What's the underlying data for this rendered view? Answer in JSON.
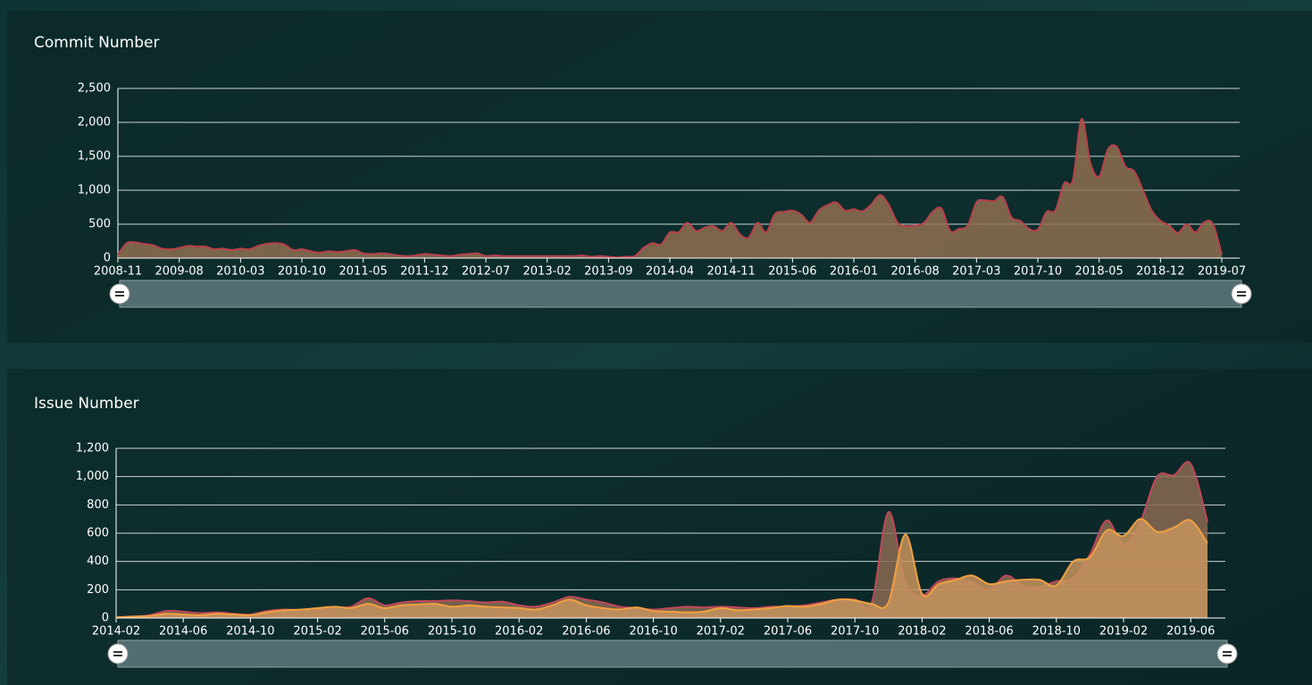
{
  "chart_data": [
    {
      "type": "area",
      "title": "Commit Number",
      "categories": [
        "2008-11",
        null,
        null,
        null,
        null,
        null,
        null,
        "2009-08",
        null,
        null,
        null,
        null,
        null,
        null,
        "2010-03",
        null,
        null,
        null,
        null,
        null,
        null,
        "2010-10",
        null,
        null,
        null,
        null,
        null,
        null,
        "2011-05",
        null,
        null,
        null,
        null,
        null,
        null,
        "2011-12",
        null,
        null,
        null,
        null,
        null,
        null,
        "2012-07",
        null,
        null,
        null,
        null,
        null,
        null,
        "2013-02",
        null,
        null,
        null,
        null,
        null,
        null,
        "2013-09",
        null,
        null,
        null,
        null,
        null,
        null,
        "2014-04",
        null,
        null,
        null,
        null,
        null,
        null,
        "2014-11",
        null,
        null,
        null,
        null,
        null,
        null,
        "2015-06",
        null,
        null,
        null,
        null,
        null,
        null,
        "2016-01",
        null,
        null,
        null,
        null,
        null,
        null,
        "2016-08",
        null,
        null,
        null,
        null,
        null,
        null,
        "2017-03",
        null,
        null,
        null,
        null,
        null,
        null,
        "2017-10",
        null,
        null,
        null,
        null,
        null,
        null,
        "2018-05",
        null,
        null,
        null,
        null,
        null,
        null,
        "2018-12",
        null,
        null,
        null,
        null,
        null,
        null,
        "2019-07"
      ],
      "series": [
        {
          "color": "#b8404a",
          "fill": "#8f7050",
          "values": [
            50,
            220,
            230,
            210,
            190,
            140,
            130,
            150,
            180,
            170,
            170,
            130,
            140,
            120,
            140,
            130,
            180,
            210,
            220,
            200,
            120,
            130,
            100,
            80,
            100,
            90,
            100,
            120,
            70,
            60,
            70,
            60,
            40,
            30,
            40,
            60,
            50,
            40,
            30,
            50,
            60,
            70,
            30,
            40,
            30,
            30,
            30,
            30,
            30,
            30,
            30,
            30,
            30,
            40,
            20,
            30,
            20,
            10,
            20,
            30,
            150,
            220,
            200,
            380,
            380,
            520,
            400,
            450,
            470,
            400,
            520,
            350,
            300,
            520,
            380,
            650,
            680,
            700,
            640,
            520,
            700,
            780,
            820,
            700,
            720,
            690,
            790,
            930,
            780,
            520,
            470,
            480,
            520,
            680,
            730,
            400,
            430,
            480,
            820,
            850,
            840,
            900,
            600,
            550,
            430,
            420,
            680,
            700,
            1100,
            1150,
            2050,
            1400,
            1200,
            1600,
            1640,
            1350,
            1280,
            1000,
            700,
            550,
            480,
            370,
            500,
            380,
            530,
            500,
            50
          ]
        }
      ],
      "ylim": [
        0,
        2500
      ],
      "yticks": [
        0,
        500,
        {
          "value": 1000,
          "label": "1,000"
        },
        {
          "value": 1500,
          "label": "1,500"
        },
        {
          "value": 2000,
          "label": "2,000"
        },
        {
          "value": 2500,
          "label": "2,500"
        }
      ],
      "grid": true
    },
    {
      "type": "area",
      "title": "Issue Number",
      "categories": [
        "2014-02",
        null,
        null,
        null,
        "2014-06",
        null,
        null,
        null,
        "2014-10",
        null,
        null,
        null,
        "2015-02",
        null,
        null,
        null,
        "2015-06",
        null,
        null,
        null,
        "2015-10",
        null,
        null,
        null,
        "2016-02",
        null,
        null,
        null,
        "2016-06",
        null,
        null,
        null,
        "2016-10",
        null,
        null,
        null,
        "2017-02",
        null,
        null,
        null,
        "2017-06",
        null,
        null,
        null,
        "2017-10",
        null,
        null,
        null,
        "2018-02",
        null,
        null,
        null,
        "2018-06",
        null,
        null,
        null,
        "2018-10",
        null,
        null,
        null,
        "2019-02",
        null,
        null,
        null,
        "2019-06",
        null
      ],
      "series": [
        {
          "color": "#c0475a",
          "fill": "#8a6a52",
          "values": [
            5,
            10,
            20,
            50,
            45,
            35,
            40,
            30,
            25,
            50,
            60,
            55,
            60,
            75,
            80,
            140,
            90,
            110,
            120,
            120,
            125,
            120,
            110,
            115,
            90,
            80,
            110,
            150,
            130,
            110,
            80,
            70,
            60,
            70,
            80,
            75,
            80,
            75,
            70,
            80,
            80,
            90,
            110,
            130,
            130,
            110,
            750,
            250,
            160,
            260,
            280,
            250,
            200,
            300,
            230,
            220,
            260,
            280,
            450,
            690,
            520,
            680,
            1000,
            1010,
            1090,
            680
          ]
        },
        {
          "color": "#f0a040",
          "fill": "#c8945e",
          "values": [
            5,
            10,
            15,
            30,
            25,
            20,
            30,
            25,
            20,
            40,
            55,
            60,
            70,
            80,
            70,
            100,
            70,
            90,
            95,
            100,
            80,
            90,
            80,
            75,
            70,
            60,
            90,
            130,
            90,
            70,
            60,
            75,
            50,
            45,
            40,
            45,
            70,
            55,
            60,
            70,
            85,
            80,
            100,
            130,
            125,
            100,
            110,
            590,
            170,
            240,
            270,
            300,
            240,
            260,
            270,
            270,
            230,
            400,
            430,
            620,
            580,
            700,
            610,
            640,
            690,
            530
          ]
        }
      ],
      "ylim": [
        0,
        1200
      ],
      "yticks": [
        0,
        200,
        400,
        600,
        800,
        {
          "value": 1000,
          "label": "1,000"
        },
        {
          "value": 1200,
          "label": "1,200"
        }
      ],
      "grid": true
    }
  ]
}
